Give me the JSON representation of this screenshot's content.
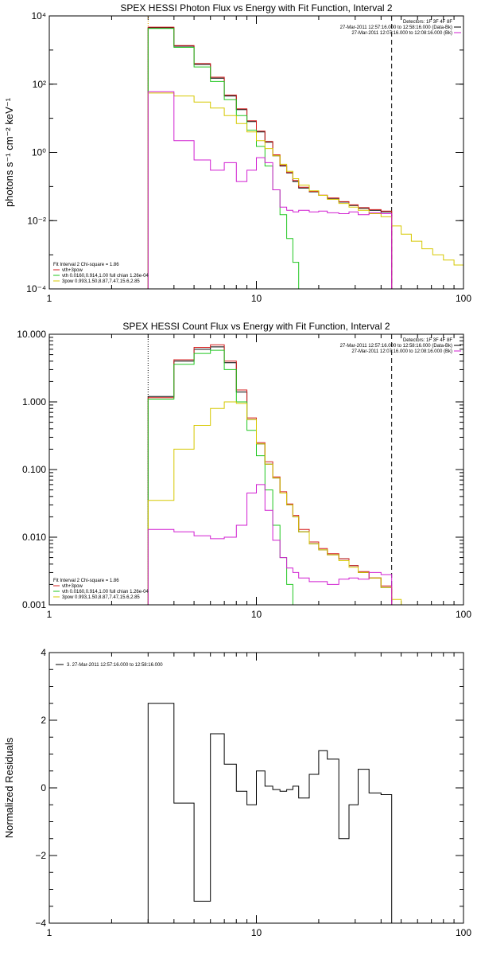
{
  "colors": {
    "black": "#000000",
    "red": "#d61f1f",
    "green": "#22c722",
    "yellow": "#d6c800",
    "magenta": "#d11fd1",
    "orange": "#e8a000"
  },
  "chart_data": [
    {
      "type": "line",
      "title": "SPEX HESSI Photon Flux vs Energy with Fit Function, Interval 2",
      "xlabel": "",
      "ylabel": "photons s⁻¹ cm⁻² keV⁻¹",
      "xscale": "log",
      "yscale": "log",
      "xlim": [
        1,
        100
      ],
      "ylim": [
        0.0001,
        10000
      ],
      "x_ticks": [
        {
          "v": 1,
          "label": "1"
        },
        {
          "v": 10,
          "label": "10"
        },
        {
          "v": 100,
          "label": "100"
        }
      ],
      "y_ticks": [
        {
          "v": 0.0001,
          "label": "10⁻⁴"
        },
        {
          "v": 0.01,
          "label": "10⁻²"
        },
        {
          "v": 1,
          "label": "10⁰"
        },
        {
          "v": 100,
          "label": "10²"
        },
        {
          "v": 10000,
          "label": "10⁴"
        }
      ],
      "vlines": [
        {
          "x": 3.0,
          "style": "dotted",
          "color": "orange"
        },
        {
          "x": 45,
          "style": "dashed",
          "color": "black"
        }
      ],
      "legend_top_right": [
        {
          "text": "Detectors: 1F 3F 4F 8F",
          "color": ""
        },
        {
          "text": "27-Mar-2011 12:57:16.000 to 12:58:16.000 (Data-Bk)",
          "color": "black"
        },
        {
          "text": "27-Mar-2011 12:07:16.000 to 12:08:16.000 (Bk)",
          "color": "magenta"
        }
      ],
      "legend_bottom_left": [
        {
          "text": "Fit Interval 2   Chi-square = 1.86",
          "color": ""
        },
        {
          "text": "vth+3pow",
          "color": "red"
        },
        {
          "text": "vth 0.0160,0.914,1.00  full chian 1.26e-04",
          "color": "green"
        },
        {
          "text": "3pow 0.993,1.50,8.87,7.47,15.6,2.85",
          "color": "yellow"
        }
      ],
      "series": [
        {
          "color": "black",
          "edges": [
            3.0,
            4.0,
            5.0,
            6.0,
            7.0,
            8.0,
            9.0,
            10.0,
            11.0,
            12.0,
            13.0,
            14.0,
            15.0,
            16.0,
            18.0,
            20.0,
            22.0,
            25.0,
            28.0,
            31.0,
            35.0,
            40.0,
            45.0
          ],
          "values": [
            4500,
            1300,
            380,
            150,
            45,
            18,
            8,
            4,
            2,
            0.8,
            0.4,
            0.25,
            0.14,
            0.09,
            0.07,
            0.055,
            0.045,
            0.035,
            0.028,
            0.023,
            0.02,
            0.018
          ]
        },
        {
          "color": "red",
          "edges": [
            3.0,
            4.0,
            5.0,
            6.0,
            7.0,
            8.0,
            9.0,
            10.0,
            11.0,
            12.0,
            13.0,
            14.0,
            15.0,
            16.0,
            18.0,
            20.0,
            22.0,
            25.0,
            28.0,
            31.0,
            35.0,
            40.0,
            45.0
          ],
          "values": [
            4700,
            1350,
            400,
            160,
            48,
            19,
            8.5,
            4.2,
            2.1,
            0.85,
            0.42,
            0.26,
            0.15,
            0.095,
            0.072,
            0.056,
            0.046,
            0.036,
            0.029,
            0.024,
            0.021,
            0.019
          ]
        },
        {
          "color": "green",
          "edges": [
            3.0,
            4.0,
            5.0,
            6.0,
            7.0,
            8.0,
            9.0,
            10.0,
            11.0,
            12.0,
            13.0,
            14.0,
            15.0,
            16.0,
            18.0
          ],
          "values": [
            4300,
            1200,
            320,
            120,
            35,
            12,
            4.5,
            1.5,
            0.4,
            0.08,
            0.015,
            0.003,
            0.0006,
            0.0001
          ]
        },
        {
          "color": "yellow",
          "edges": [
            3.0,
            4.0,
            5.0,
            6.0,
            7.0,
            8.0,
            9.0,
            10.0,
            11.0,
            12.0,
            13.0,
            14.0,
            15.0,
            16.0,
            18.0,
            20.0,
            22.0,
            25.0,
            28.0,
            31.0,
            35.0,
            40.0,
            45.0,
            50.0,
            56.0,
            63.0,
            71.0,
            80.0,
            90.0,
            100.0
          ],
          "values": [
            55,
            45,
            30,
            20,
            12,
            7,
            4,
            2.2,
            1.3,
            0.8,
            0.45,
            0.28,
            0.17,
            0.11,
            0.075,
            0.055,
            0.042,
            0.032,
            0.025,
            0.02,
            0.016,
            0.013,
            0.007,
            0.004,
            0.0025,
            0.0015,
            0.001,
            0.0007,
            0.0005
          ]
        },
        {
          "color": "magenta",
          "edges": [
            3.0,
            4.0,
            5.0,
            6.0,
            7.0,
            8.0,
            9.0,
            10.0,
            11.0,
            12.0,
            13.0,
            14.0,
            15.0,
            16.0,
            18.0,
            20.0,
            22.0,
            25.0,
            28.0,
            31.0,
            35.0,
            40.0,
            45.0
          ],
          "values": [
            60,
            2.2,
            0.6,
            0.3,
            0.5,
            0.14,
            0.3,
            0.7,
            0.5,
            0.08,
            0.025,
            0.02,
            0.018,
            0.02,
            0.018,
            0.019,
            0.017,
            0.016,
            0.018,
            0.015,
            0.017,
            0.016
          ]
        }
      ]
    },
    {
      "type": "line",
      "title": "SPEX HESSI Count Flux vs Energy with Fit Function, Interval 2",
      "xlabel": "",
      "ylabel": "",
      "xscale": "log",
      "yscale": "log",
      "xlim": [
        1,
        100
      ],
      "ylim": [
        0.001,
        10
      ],
      "x_ticks": [
        {
          "v": 1,
          "label": "1"
        },
        {
          "v": 10,
          "label": "10"
        },
        {
          "v": 100,
          "label": "100"
        }
      ],
      "y_ticks": [
        {
          "v": 0.001,
          "label": "0.001"
        },
        {
          "v": 0.01,
          "label": "0.010"
        },
        {
          "v": 0.1,
          "label": "0.100"
        },
        {
          "v": 1,
          "label": "1.000"
        },
        {
          "v": 10,
          "label": "10.000"
        }
      ],
      "vlines": [
        {
          "x": 3.0,
          "style": "dotted",
          "color": "black"
        },
        {
          "x": 45,
          "style": "dashed",
          "color": "black"
        }
      ],
      "legend_top_right": [
        {
          "text": "Detectors: 1F 3F 4F 8F",
          "color": ""
        },
        {
          "text": "27-Mar-2011 12:57:16.000 to 12:58:16.000 (Data-Bk)",
          "color": "black"
        },
        {
          "text": "27-Mar-2011 12:07:16.000 to 12:08:16.000 (Bk)",
          "color": "magenta"
        }
      ],
      "legend_bottom_left": [
        {
          "text": "Fit Interval 2   Chi-square = 1.86",
          "color": ""
        },
        {
          "text": "vth+3pow",
          "color": "red"
        },
        {
          "text": "vth 0.0160,0.914,1.00  full chian 1.26e-04",
          "color": "green"
        },
        {
          "text": "3pow 0.993,1.50,8.87,7.47,15.6,2.85",
          "color": "yellow"
        }
      ],
      "series": [
        {
          "color": "black",
          "edges": [
            3.0,
            4.0,
            5.0,
            6.0,
            7.0,
            8.0,
            9.0,
            10.0,
            11.0,
            12.0,
            13.0,
            14.0,
            15.0,
            16.0,
            18.0,
            20.0,
            22.0,
            25.0,
            28.0,
            31.0,
            35.0,
            40.0,
            45.0
          ],
          "values": [
            1.2,
            4.0,
            6.0,
            6.5,
            3.8,
            1.4,
            0.55,
            0.24,
            0.12,
            0.075,
            0.045,
            0.03,
            0.02,
            0.012,
            0.008,
            0.0065,
            0.0055,
            0.0048,
            0.0038,
            0.003,
            0.0025,
            0.0018
          ]
        },
        {
          "color": "red",
          "edges": [
            3.0,
            4.0,
            5.0,
            6.0,
            7.0,
            8.0,
            9.0,
            10.0,
            11.0,
            12.0,
            13.0,
            14.0,
            15.0,
            16.0,
            18.0,
            20.0,
            22.0,
            25.0,
            28.0,
            31.0,
            35.0,
            40.0,
            45.0
          ],
          "values": [
            1.15,
            4.2,
            6.4,
            7.0,
            4.0,
            1.5,
            0.58,
            0.25,
            0.13,
            0.078,
            0.047,
            0.031,
            0.021,
            0.013,
            0.0085,
            0.0068,
            0.0057,
            0.0048,
            0.0038,
            0.0031,
            0.0025,
            0.0019
          ]
        },
        {
          "color": "green",
          "edges": [
            3.0,
            4.0,
            5.0,
            6.0,
            7.0,
            8.0,
            9.0,
            10.0,
            11.0,
            12.0,
            13.0,
            14.0,
            15.0,
            16.0
          ],
          "values": [
            1.1,
            3.6,
            5.2,
            5.8,
            3.0,
            1.0,
            0.38,
            0.16,
            0.05,
            0.015,
            0.005,
            0.002,
            0.001
          ]
        },
        {
          "color": "yellow",
          "edges": [
            3.0,
            4.0,
            5.0,
            6.0,
            7.0,
            8.0,
            9.0,
            10.0,
            11.0,
            12.0,
            13.0,
            14.0,
            15.0,
            16.0,
            18.0,
            20.0,
            22.0,
            25.0,
            28.0,
            31.0,
            35.0,
            40.0,
            45.0,
            50.0
          ],
          "values": [
            0.035,
            0.2,
            0.45,
            0.8,
            1.0,
            0.95,
            0.55,
            0.24,
            0.12,
            0.075,
            0.045,
            0.03,
            0.02,
            0.012,
            0.008,
            0.0065,
            0.0055,
            0.0045,
            0.0036,
            0.003,
            0.0025,
            0.0018,
            0.0012
          ]
        },
        {
          "color": "magenta",
          "edges": [
            3.0,
            4.0,
            5.0,
            6.0,
            7.0,
            8.0,
            9.0,
            10.0,
            11.0,
            12.0,
            13.0,
            14.0,
            15.0,
            16.0,
            18.0,
            20.0,
            22.0,
            25.0,
            28.0,
            31.0,
            35.0,
            40.0,
            45.0
          ],
          "values": [
            0.013,
            0.012,
            0.0105,
            0.0095,
            0.01,
            0.015,
            0.045,
            0.06,
            0.025,
            0.009,
            0.005,
            0.0035,
            0.003,
            0.0025,
            0.0022,
            0.0022,
            0.002,
            0.0024,
            0.0025,
            0.0024,
            0.003,
            0.0028
          ]
        }
      ]
    },
    {
      "type": "line",
      "title": "",
      "xlabel": "",
      "ylabel": "Normalized Residuals",
      "xscale": "log",
      "yscale": "linear",
      "xlim": [
        1,
        100
      ],
      "ylim": [
        -4,
        4
      ],
      "x_ticks": [
        {
          "v": 1,
          "label": "1"
        },
        {
          "v": 10,
          "label": "10"
        },
        {
          "v": 100,
          "label": "100"
        }
      ],
      "y_ticks": [
        {
          "v": -4,
          "label": "−4"
        },
        {
          "v": -2,
          "label": "−2"
        },
        {
          "v": 0,
          "label": "0"
        },
        {
          "v": 2,
          "label": "2"
        },
        {
          "v": 4,
          "label": "4"
        }
      ],
      "legend_top_left": [
        {
          "text": "3. 27-Mar-2011 12:57:16.000 to 12:58:16.000",
          "color": "black"
        }
      ],
      "series": [
        {
          "color": "black",
          "edges": [
            3.0,
            4.0,
            5.0,
            6.0,
            7.0,
            8.0,
            9.0,
            10.0,
            11.0,
            12.0,
            13.0,
            14.0,
            15.0,
            16.0,
            18.0,
            20.0,
            22.0,
            25.0,
            28.0,
            31.0,
            35.0,
            40.0,
            45.0
          ],
          "values": [
            2.5,
            -0.45,
            -3.35,
            1.6,
            0.7,
            -0.1,
            -0.5,
            0.5,
            0.05,
            -0.05,
            -0.1,
            -0.05,
            0.05,
            -0.3,
            0.4,
            1.1,
            0.85,
            -1.5,
            -0.5,
            0.55,
            -0.15,
            -0.2
          ]
        }
      ]
    }
  ]
}
